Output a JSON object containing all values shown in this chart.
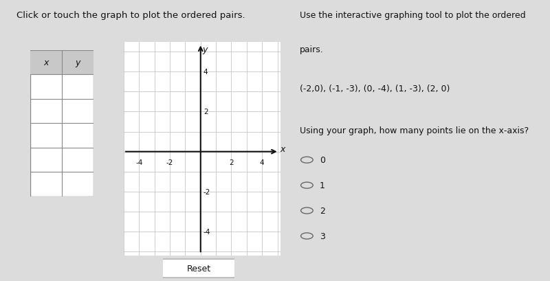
{
  "bg_color": "#dcdcdc",
  "title_text": "Click or touch the graph to plot the ordered pairs.",
  "title_fontsize": 9.5,
  "right_title_line1": "Use the interactive graphing tool to plot the ordered",
  "right_title_line2": "pairs.",
  "ordered_pairs_text": "(-2,0), (-1, -3), (0, -4), (1, -3), (2, 0)",
  "question_text": "Using your graph, how many points lie on the x-axis?",
  "question_italic_word": "x",
  "options": [
    "0",
    "1",
    "2",
    "3"
  ],
  "table_header": [
    "x",
    "y"
  ],
  "table_rows": 5,
  "graph_xlim": [
    -5,
    5.2
  ],
  "graph_ylim": [
    -5.2,
    5.5
  ],
  "xticks": [
    -4,
    -2,
    2,
    4
  ],
  "yticks": [
    -4,
    -2,
    2,
    4
  ],
  "grid_color": "#bbbbbb",
  "axis_color": "#111111",
  "reset_button_text": "Reset",
  "font_color": "#111111",
  "table_border_color": "#888888",
  "table_header_bg": "#c8c8c8",
  "white": "#ffffff"
}
